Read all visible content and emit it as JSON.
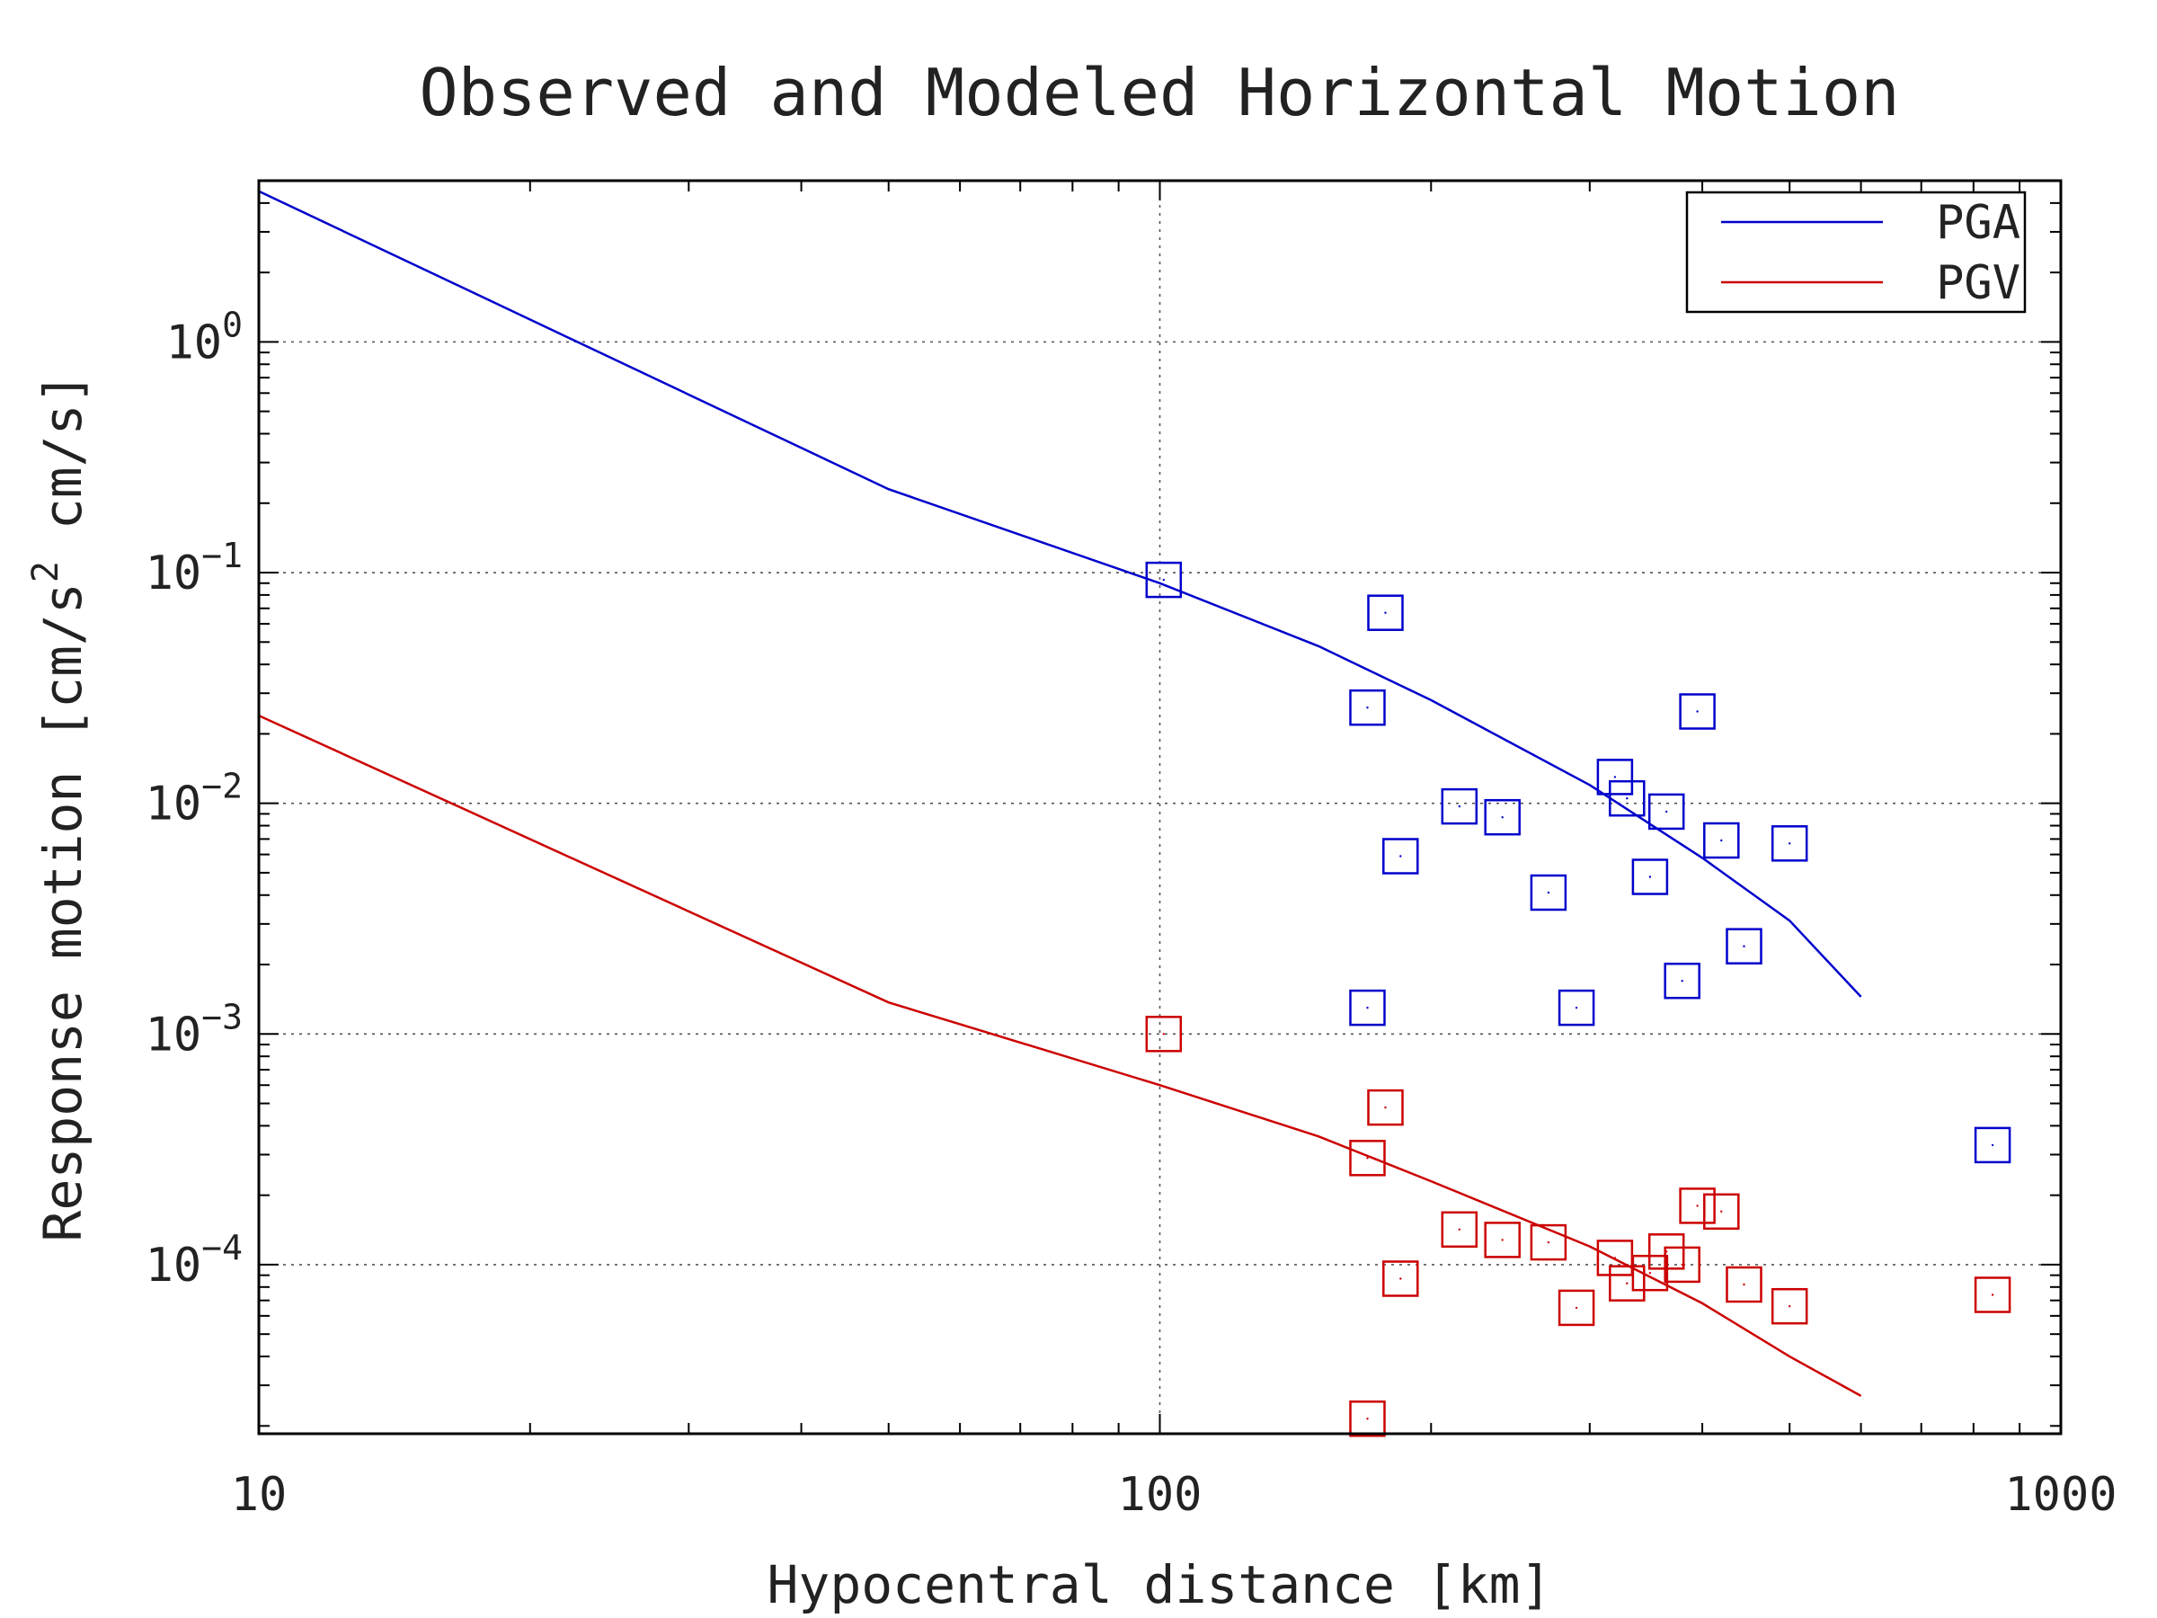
{
  "chart_data": {
    "type": "scatter",
    "title": "Observed and Modeled Horizontal Motion",
    "xlabel": "Hypocentral distance [km]",
    "ylabel": "Response motion [cm/s² cm/s]",
    "ylabel_parts": {
      "pre": "Response motion [cm/s",
      "sup": "2",
      "post": " cm/s]"
    },
    "x_scale": "log",
    "y_scale": "log",
    "xlim": [
      10,
      1000
    ],
    "ylim": [
      1.85e-05,
      5
    ],
    "x_ticks": [
      {
        "value": 10,
        "label": "10"
      },
      {
        "value": 100,
        "label": "100"
      },
      {
        "value": 1000,
        "label": "1000"
      }
    ],
    "y_ticks": [
      {
        "value": 1,
        "base": "10",
        "exp": "0"
      },
      {
        "value": 0.1,
        "base": "10",
        "exp": "−1"
      },
      {
        "value": 0.01,
        "base": "10",
        "exp": "−2"
      },
      {
        "value": 0.001,
        "base": "10",
        "exp": "−3"
      },
      {
        "value": 0.0001,
        "base": "10",
        "exp": "−4"
      }
    ],
    "grid": true,
    "legend_position": "top-right",
    "series": [
      {
        "name": "PGA",
        "color": "#0000cc",
        "line": [
          [
            10,
            4.5
          ],
          [
            50,
            0.23
          ],
          [
            100,
            0.09
          ],
          [
            150,
            0.048
          ],
          [
            200,
            0.028
          ],
          [
            300,
            0.012
          ],
          [
            400,
            0.0058
          ],
          [
            500,
            0.0031
          ],
          [
            600,
            0.00145
          ]
        ],
        "points": [
          [
            101,
            0.093
          ],
          [
            178,
            0.067
          ],
          [
            170,
            0.026
          ],
          [
            395,
            0.025
          ],
          [
            215,
            0.0097
          ],
          [
            320,
            0.013
          ],
          [
            330,
            0.0105
          ],
          [
            365,
            0.0092
          ],
          [
            240,
            0.0087
          ],
          [
            185,
            0.0059
          ],
          [
            420,
            0.0069
          ],
          [
            500,
            0.0067
          ],
          [
            350,
            0.0048
          ],
          [
            270,
            0.0041
          ],
          [
            445,
            0.0024
          ],
          [
            380,
            0.0017
          ],
          [
            170,
            0.0013
          ],
          [
            290,
            0.0013
          ],
          [
            840,
            0.00033
          ]
        ]
      },
      {
        "name": "PGV",
        "color": "#cc0000",
        "line": [
          [
            10,
            0.024
          ],
          [
            50,
            0.00137
          ],
          [
            100,
            0.0006
          ],
          [
            150,
            0.00036
          ],
          [
            200,
            0.00023
          ],
          [
            300,
            0.00012
          ],
          [
            400,
            6.8e-05
          ],
          [
            500,
            4e-05
          ],
          [
            600,
            2.7e-05
          ]
        ],
        "points": [
          [
            101,
            0.001
          ],
          [
            178,
            0.00048
          ],
          [
            170,
            0.00029
          ],
          [
            395,
            0.00018
          ],
          [
            420,
            0.00017
          ],
          [
            215,
            0.000142
          ],
          [
            240,
            0.000128
          ],
          [
            270,
            0.000125
          ],
          [
            320,
            0.000107
          ],
          [
            365,
            0.000114
          ],
          [
            380,
            0.0001
          ],
          [
            350,
            9.2e-05
          ],
          [
            330,
            8.3e-05
          ],
          [
            185,
            8.7e-05
          ],
          [
            445,
            8.2e-05
          ],
          [
            290,
            6.5e-05
          ],
          [
            500,
            6.6e-05
          ],
          [
            840,
            7.4e-05
          ],
          [
            170,
            2.15e-05
          ]
        ]
      }
    ]
  }
}
